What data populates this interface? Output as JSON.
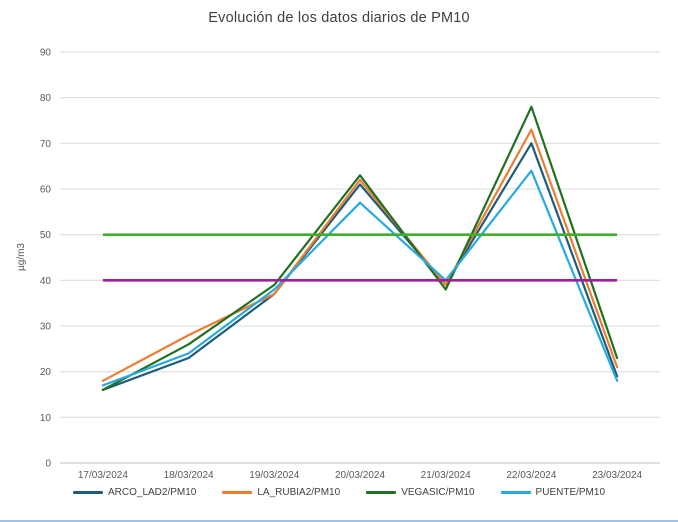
{
  "chart": {
    "title": "Evolución de los datos diarios de PM10",
    "y_axis_label": "µg/m3"
  },
  "chart_data": {
    "type": "line",
    "title": "Evolución de los datos diarios de PM10",
    "xlabel": "",
    "ylabel": "µg/m3",
    "ylim": [
      0,
      90
    ],
    "ytick_interval": 10,
    "yticks": [
      0,
      10,
      20,
      30,
      40,
      50,
      60,
      70,
      80,
      90
    ],
    "grid": true,
    "legend_position": "bottom",
    "categories": [
      "17/03/2024",
      "18/03/2024",
      "19/03/2024",
      "20/03/2024",
      "21/03/2024",
      "22/03/2024",
      "23/03/2024"
    ],
    "series": [
      {
        "name": "ARCO_LAD2/PM10",
        "color": "#1E5C7A",
        "values": [
          16,
          23,
          37,
          61,
          39,
          70,
          19
        ]
      },
      {
        "name": "LA_RUBIA2/PM10",
        "color": "#ED7D31",
        "values": [
          18,
          28,
          37,
          62,
          39,
          73,
          21
        ]
      },
      {
        "name": "VEGASIC/PM10",
        "color": "#217021",
        "values": [
          16,
          26,
          39,
          63,
          38,
          78,
          23
        ]
      },
      {
        "name": "PUENTE/PM10",
        "color": "#29A9E0",
        "values": [
          17,
          24,
          38,
          57,
          40,
          64,
          18
        ]
      }
    ],
    "reference_lines": [
      {
        "value": 50,
        "color": "#3EAE2B"
      },
      {
        "value": 40,
        "color": "#A01E9C"
      }
    ],
    "colors": {
      "gridline": "#D9D9D9",
      "axis_line": "#BFBFBF",
      "tick_label": "#595959",
      "title_text": "#3F3F3F"
    }
  }
}
